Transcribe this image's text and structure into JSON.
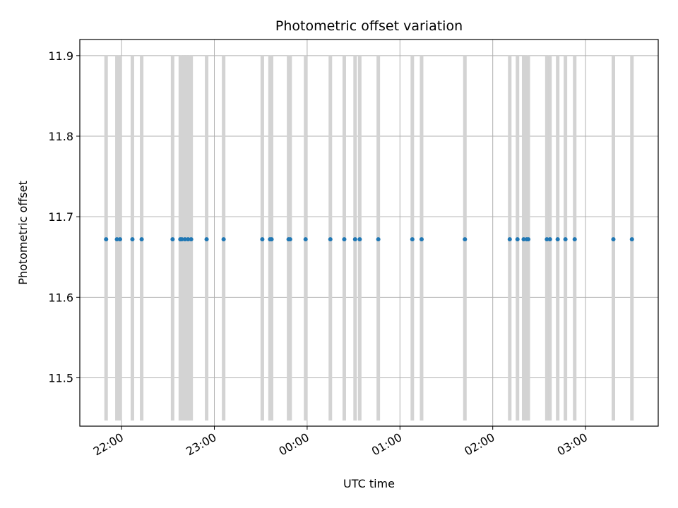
{
  "chart_data": {
    "type": "scatter",
    "title": "Photometric offset variation",
    "xlabel": "UTC time",
    "ylabel": "Photometric offset",
    "x_axis": "time",
    "xlim": [
      "21:33",
      "03:47"
    ],
    "ylim": [
      11.44,
      11.92
    ],
    "xticks": [
      "22:00",
      "23:00",
      "00:00",
      "01:00",
      "02:00",
      "03:00"
    ],
    "yticks": [
      "11.5",
      "11.6",
      "11.7",
      "11.8",
      "11.9"
    ],
    "grid": true,
    "legend": "none",
    "series": [
      {
        "color": "#1f77b4",
        "marker": "dot",
        "y": 11.672,
        "x": [
          "21:50",
          "21:57",
          "21:59",
          "22:07",
          "22:13",
          "22:33",
          "22:38",
          "22:39",
          "22:41",
          "22:43",
          "22:45",
          "22:55",
          "23:06",
          "23:31",
          "23:36",
          "23:37",
          "23:48",
          "23:49",
          "23:59",
          "00:15",
          "00:24",
          "00:31",
          "00:34",
          "00:46",
          "01:08",
          "01:14",
          "01:42",
          "02:11",
          "02:16",
          "02:20",
          "02:22",
          "02:23",
          "02:35",
          "02:37",
          "02:42",
          "02:47",
          "02:53",
          "03:18",
          "03:30"
        ]
      }
    ],
    "vertical_bands": {
      "color": "#d3d3d3",
      "ymin": 11.447,
      "ymax": 11.9,
      "times": [
        "21:50",
        "21:57",
        "21:59",
        "22:07",
        "22:13",
        "22:33",
        "22:38",
        "22:39",
        "22:41",
        "22:43",
        "22:45",
        "22:55",
        "23:06",
        "23:31",
        "23:36",
        "23:37",
        "23:48",
        "23:49",
        "23:59",
        "00:15",
        "00:24",
        "00:31",
        "00:34",
        "00:46",
        "01:08",
        "01:14",
        "01:42",
        "02:11",
        "02:16",
        "02:20",
        "02:22",
        "02:23",
        "02:35",
        "02:37",
        "02:42",
        "02:47",
        "02:53",
        "03:18",
        "03:30"
      ]
    }
  }
}
